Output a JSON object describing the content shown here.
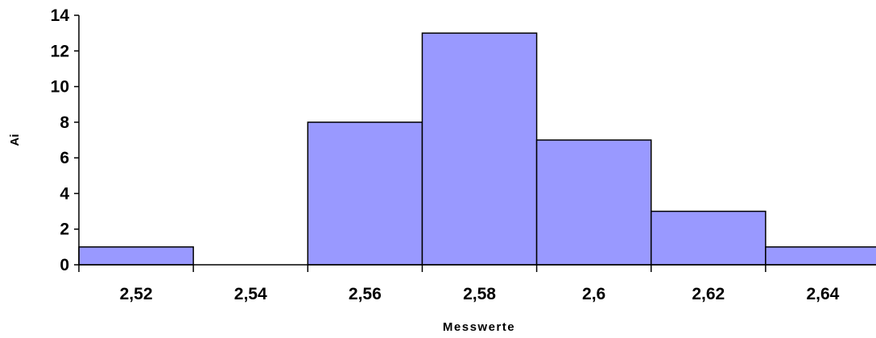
{
  "chart_data": {
    "type": "bar",
    "title": "",
    "xlabel": "Messwerte",
    "ylabel": "Ai",
    "categories": [
      "2,52",
      "2,54",
      "2,56",
      "2,58",
      "2,6",
      "2,62",
      "2,64"
    ],
    "values": [
      1,
      0,
      8,
      13,
      7,
      3,
      1
    ],
    "ylim": [
      0,
      14
    ],
    "yticks": [
      0,
      2,
      4,
      6,
      8,
      10,
      12,
      14
    ],
    "grid": false,
    "legend": "none",
    "bar_color": "#9999FF",
    "bar_edge_color": "#000000"
  }
}
